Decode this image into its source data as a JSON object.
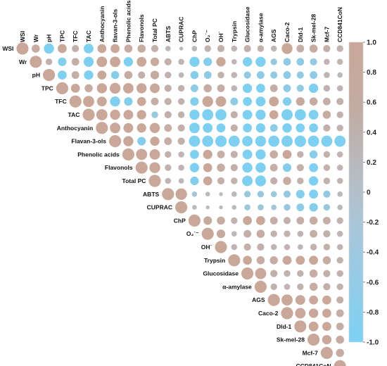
{
  "chart_data": {
    "type": "heatmap",
    "subtype": "correlogram-upper-triangle",
    "title": "",
    "variables": [
      {
        "id": "WSI",
        "label": "WSI"
      },
      {
        "id": "Wr",
        "label": "Wr"
      },
      {
        "id": "pH",
        "label": "pH"
      },
      {
        "id": "TPC",
        "label": "TPC"
      },
      {
        "id": "TFC",
        "label": "TFC"
      },
      {
        "id": "TAC",
        "label": "TAC"
      },
      {
        "id": "Anthocyanin",
        "label": "Anthocyanin"
      },
      {
        "id": "flavan-3-ols",
        "label": "flavan-3-ols",
        "row_label": "Flavan-3-ols"
      },
      {
        "id": "Phenolic acids",
        "label": "Phenolic acids"
      },
      {
        "id": "Flavonols",
        "label": "Flavonols"
      },
      {
        "id": "Total PC",
        "label": "Total PC"
      },
      {
        "id": "ABTS",
        "label": "ABTS"
      },
      {
        "id": "CUPRAC",
        "label": "CUPRAC"
      },
      {
        "id": "ChP",
        "label": "ChP"
      },
      {
        "id": "O2-",
        "label": "O₂˙⁻"
      },
      {
        "id": "OH",
        "label": "OH˙"
      },
      {
        "id": "Trypsin",
        "label": "Trypsin"
      },
      {
        "id": "Glucosidase",
        "label": "Glucosidase"
      },
      {
        "id": "alpha-amylase",
        "label": "α-amylase"
      },
      {
        "id": "AGS",
        "label": "AGS"
      },
      {
        "id": "Caco-2",
        "label": "Caco-2"
      },
      {
        "id": "Dld-1",
        "label": "Dld-1"
      },
      {
        "id": "Sk-mel-28",
        "label": "Sk-mel-28"
      },
      {
        "id": "Mcf-7",
        "label": "Mcf-7"
      },
      {
        "id": "CCD841CoN",
        "label": "CCD841CoN"
      }
    ],
    "correlation_rows": [
      [
        1.0,
        0.45,
        -0.7,
        0.55,
        0.35,
        -0.65,
        0.55,
        0.55,
        0.45,
        0.45,
        0.35,
        0.2,
        0.1,
        0.2,
        0.3,
        0.35,
        0.25,
        0.35,
        0.3,
        0.25,
        0.8,
        0.4,
        0.45,
        0.35,
        0.3
      ],
      [
        1.0,
        0.3,
        -0.5,
        0.4,
        -0.7,
        0.75,
        0.75,
        -0.6,
        0.65,
        0.5,
        0.35,
        0.25,
        -0.7,
        -0.5,
        0.6,
        0.2,
        -0.6,
        -0.7,
        -0.3,
        -0.4,
        -0.4,
        -0.35,
        0.25,
        0.25
      ],
      [
        1.0,
        -0.55,
        0.4,
        -0.6,
        0.55,
        -0.45,
        0.45,
        0.35,
        0.5,
        0.3,
        0.2,
        -0.45,
        -0.4,
        0.3,
        0.25,
        -0.35,
        -0.4,
        -0.35,
        -0.4,
        -0.35,
        -0.4,
        0.25,
        0.2
      ],
      [
        1.0,
        0.55,
        0.45,
        0.7,
        0.8,
        0.75,
        0.7,
        0.65,
        0.35,
        0.3,
        -0.4,
        0.45,
        0.4,
        0.25,
        -0.6,
        -0.55,
        0.4,
        -0.4,
        -0.35,
        -0.6,
        0.3,
        0.25
      ],
      [
        1.0,
        0.85,
        0.65,
        -0.7,
        -0.5,
        0.55,
        0.4,
        0.35,
        0.3,
        -0.5,
        0.8,
        0.75,
        -0.4,
        -0.55,
        -0.65,
        0.65,
        -0.5,
        0.5,
        0.45,
        0.4,
        0.35
      ],
      [
        1.0,
        0.85,
        0.7,
        0.65,
        0.6,
        -0.3,
        0.35,
        0.3,
        -0.7,
        -0.85,
        -0.85,
        0.35,
        -0.65,
        -0.7,
        0.55,
        -0.85,
        -0.85,
        -0.65,
        0.45,
        0.3
      ],
      [
        1.0,
        0.75,
        0.65,
        0.6,
        0.7,
        0.4,
        0.35,
        -0.75,
        -0.65,
        -0.55,
        0.35,
        -0.55,
        -0.6,
        -0.4,
        -0.6,
        -0.55,
        -0.55,
        0.35,
        0.3
      ],
      [
        1.0,
        0.7,
        -0.5,
        0.6,
        0.4,
        0.35,
        -0.85,
        -0.85,
        -0.9,
        -0.85,
        -0.75,
        -0.8,
        -0.85,
        -0.85,
        -0.9,
        -0.85,
        -0.85,
        -0.85
      ],
      [
        1.0,
        0.85,
        0.75,
        0.3,
        0.25,
        -0.55,
        0.6,
        0.4,
        0.35,
        -0.65,
        -0.7,
        0.45,
        0.55,
        0.3,
        -0.45,
        0.3,
        0.25
      ],
      [
        1.0,
        0.8,
        0.3,
        0.25,
        -0.6,
        0.55,
        0.45,
        0.35,
        -0.7,
        -0.7,
        0.4,
        -0.5,
        0.35,
        -0.55,
        0.3,
        0.25
      ],
      [
        1.0,
        0.25,
        0.2,
        -0.5,
        0.55,
        0.35,
        0.3,
        -0.75,
        -0.8,
        0.35,
        0.45,
        0.3,
        -0.6,
        0.3,
        0.25
      ],
      [
        1.0,
        0.9,
        -0.2,
        0.15,
        0.1,
        0.2,
        -0.3,
        -0.3,
        -0.25,
        -0.35,
        -0.5,
        -0.55,
        -0.35,
        0.2
      ],
      [
        1.0,
        0.15,
        0.1,
        0.1,
        0.15,
        -0.25,
        -0.25,
        -0.2,
        -0.3,
        -0.4,
        -0.5,
        -0.3,
        0.2
      ],
      [
        1.0,
        0.5,
        0.45,
        0.3,
        0.55,
        0.55,
        0.4,
        0.35,
        0.4,
        0.45,
        0.4,
        0.3
      ],
      [
        1.0,
        0.5,
        0.2,
        0.4,
        0.45,
        0.3,
        0.3,
        0.25,
        0.4,
        0.35,
        0.25
      ],
      [
        1.0,
        0.25,
        0.35,
        0.35,
        0.25,
        0.25,
        0.2,
        0.3,
        0.3,
        0.25
      ],
      [
        1.0,
        0.55,
        0.45,
        0.45,
        0.55,
        0.55,
        0.55,
        0.45,
        0.3
      ],
      [
        1.0,
        0.85,
        0.35,
        0.3,
        0.3,
        0.45,
        0.35,
        0.3
      ],
      [
        1.0,
        0.3,
        0.25,
        0.3,
        0.45,
        0.35,
        0.3
      ],
      [
        1.0,
        0.85,
        0.65,
        0.55,
        0.55,
        0.35
      ],
      [
        1.0,
        0.75,
        0.6,
        0.55,
        0.4
      ],
      [
        1.0,
        0.65,
        0.55,
        0.4
      ],
      [
        1.0,
        0.6,
        0.45
      ],
      [
        1.0,
        0.45
      ],
      [
        1.0
      ]
    ],
    "colorbar": {
      "ticks": [
        1.0,
        0.8,
        0.6,
        0.4,
        0.2,
        0,
        -0.2,
        -0.4,
        -0.6,
        -0.8,
        -1.0
      ],
      "tick_labels": [
        "1.0",
        "0.8",
        "0.6",
        "0.4",
        "0.2",
        "0",
        "-0.2",
        "-0.4",
        "-0.6",
        "-0.8",
        "-1.0"
      ],
      "range": [
        -1.0,
        1.0
      ],
      "placement": "right"
    },
    "grid": false,
    "legend": "colorbar-right",
    "colors": {
      "positive": "#c9a89a",
      "neutral": "#b8bfc7",
      "negative": "#7fd0f0"
    }
  }
}
